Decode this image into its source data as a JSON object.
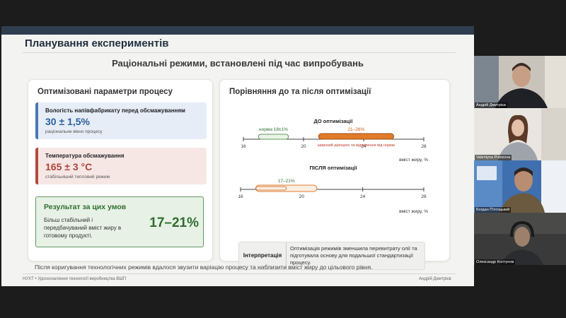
{
  "slide": {
    "title": "Планування експериментів",
    "subtitle": "Раціональні режими, встановлені під час випробувань",
    "left_card": {
      "heading": "Оптимізовані параметри процесу",
      "params": [
        {
          "label": "Вологість напівфабрикату перед обсмажуванням",
          "value": "30 ± 1,5%",
          "note": "раціональне вікно процесу"
        },
        {
          "label": "Температура обсмажування",
          "value": "165 ± 3 °С",
          "note": "стабільніший тепловий режим"
        }
      ],
      "result": {
        "heading": "Результат за цих умов",
        "text": "Більш стабільний і передбачуваний вміст жиру в готовому продукті.",
        "value": "17–21%"
      }
    },
    "right_card": {
      "heading": "Порівняння до та після оптимізації",
      "interp_label": "Інтерпретація",
      "interp_text": "Оптимізація режимів зменшила перевитрату олії та підготувала основу для подальшої стандартизації процесу."
    },
    "footnote": "Після коригування технологічних режимів вдалося звузити варіацію процесу та наблизити вміст жиру до цільового рівня.",
    "footer_left": "НУХТ • Удосконалення технології виробництва ВШП",
    "footer_right": "Андрій Дмитрієв"
  },
  "chart_data": [
    {
      "type": "range",
      "title": "ДО оптимізації",
      "xlabel": "вміст жиру, %",
      "xlim": [
        16,
        28
      ],
      "ticks": [
        16,
        20,
        24,
        28
      ],
      "norm": {
        "label": "норма 18±1%",
        "from": 17,
        "to": 19
      },
      "range": {
        "label": "21–26%",
        "from": 21,
        "to": 26
      },
      "annotation": "широкий діапазон та відхилення від норми"
    },
    {
      "type": "range",
      "title": "ПІСЛЯ оптимізації",
      "xlabel": "вміст жиру, %",
      "xlim": [
        16,
        28
      ],
      "ticks": [
        16,
        20,
        24,
        28
      ],
      "norm": {
        "label": "",
        "from": 17,
        "to": 19
      },
      "range": {
        "label": "17–21%",
        "from": 17,
        "to": 21
      }
    }
  ],
  "participants": [
    {
      "name": "Андрій Дмитрієв"
    },
    {
      "name": "Valentyna Pobizova"
    },
    {
      "name": "Богдан П'ятоцький"
    },
    {
      "name": "Олександр Колтунов"
    }
  ],
  "colors": {
    "blue": "#4a78b3",
    "red": "#b34a3d",
    "green": "#5f9a5c",
    "orange": "#e07b2a",
    "dark": "#2f3e4e"
  }
}
